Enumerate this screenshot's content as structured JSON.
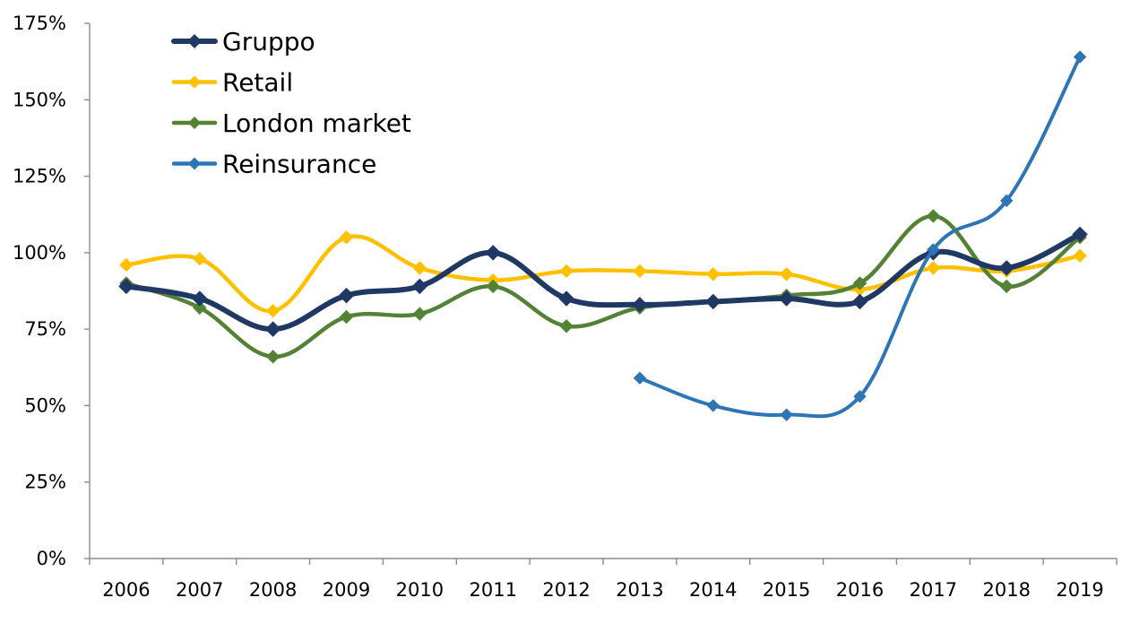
{
  "chart_data": {
    "type": "line",
    "title": "",
    "xlabel": "",
    "ylabel": "",
    "categories": [
      "2006",
      "2007",
      "2008",
      "2009",
      "2010",
      "2011",
      "2012",
      "2013",
      "2014",
      "2015",
      "2016",
      "2017",
      "2018",
      "2019"
    ],
    "yticks": [
      0,
      25,
      50,
      75,
      100,
      125,
      150,
      175
    ],
    "ytick_labels": [
      "0%",
      "25%",
      "50%",
      "75%",
      "100%",
      "125%",
      "150%",
      "175%"
    ],
    "ylim": [
      0,
      175
    ],
    "grid": false,
    "legend_position": "top-left",
    "series": [
      {
        "name": "Gruppo",
        "color": "#1F3864",
        "values": [
          89,
          85,
          75,
          86,
          89,
          100,
          85,
          83,
          84,
          85,
          84,
          100,
          95,
          106
        ]
      },
      {
        "name": "Retail",
        "color": "#FFC000",
        "values": [
          96,
          98,
          81,
          105,
          95,
          91,
          94,
          94,
          93,
          93,
          88,
          95,
          94,
          99
        ]
      },
      {
        "name": "London market",
        "color": "#548235",
        "values": [
          90,
          82,
          66,
          79,
          80,
          89,
          76,
          82,
          84,
          86,
          90,
          112,
          89,
          105
        ]
      },
      {
        "name": "Reinsurance",
        "color": "#2E75B6",
        "values": [
          null,
          null,
          null,
          null,
          null,
          null,
          null,
          59,
          50,
          47,
          53,
          101,
          117,
          164
        ]
      }
    ]
  }
}
